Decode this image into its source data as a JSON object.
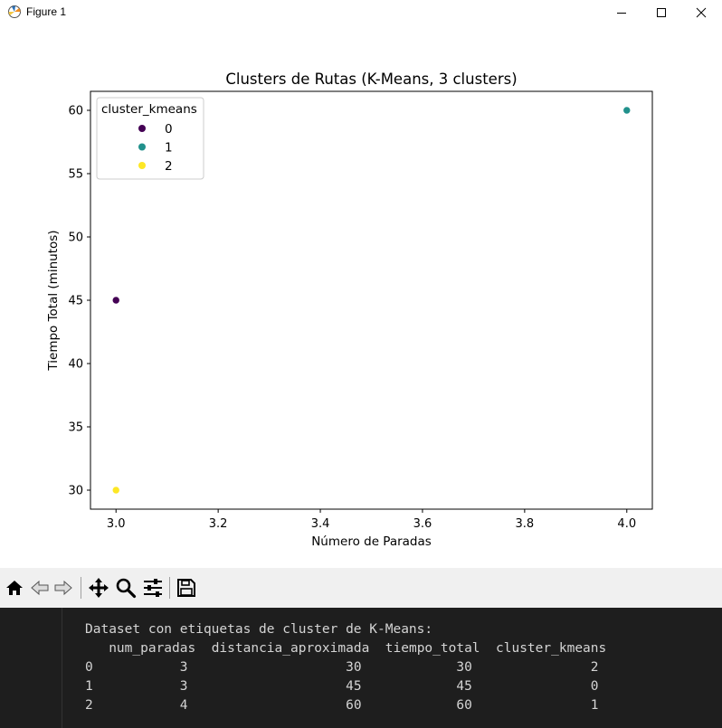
{
  "window": {
    "title": "Figure 1",
    "controls": [
      "minimize-icon",
      "maximize-icon",
      "close-icon"
    ]
  },
  "chart_data": {
    "type": "scatter",
    "title": "Clusters de Rutas (K-Means, 3 clusters)",
    "xlabel": "Número de Paradas",
    "ylabel": "Tiempo Total (minutos)",
    "xlim": [
      2.95,
      4.05
    ],
    "ylim": [
      28.5,
      61.5
    ],
    "xticks": [
      "3.0",
      "3.2",
      "3.4",
      "3.6",
      "3.8",
      "4.0"
    ],
    "yticks": [
      "30",
      "35",
      "40",
      "45",
      "50",
      "55",
      "60"
    ],
    "grid": false,
    "legend": {
      "title": "cluster_kmeans",
      "placement": "top-left",
      "entries": [
        "0",
        "1",
        "2"
      ]
    },
    "series": [
      {
        "name": "0",
        "color": "#440154",
        "points": [
          [
            3,
            45
          ]
        ]
      },
      {
        "name": "1",
        "color": "#21918c",
        "points": [
          [
            4,
            60
          ]
        ]
      },
      {
        "name": "2",
        "color": "#fde725",
        "points": [
          [
            3,
            30
          ]
        ]
      }
    ]
  },
  "toolbar": {
    "buttons": [
      "home-icon",
      "back-icon",
      "forward-icon",
      "pan-icon",
      "zoom-icon",
      "configure-subplots-icon",
      "save-icon"
    ]
  },
  "terminal": {
    "heading": "Dataset con etiquetas de cluster de K-Means:",
    "columns": [
      "num_paradas",
      "distancia_aproximada",
      "tiempo_total",
      "cluster_kmeans"
    ],
    "rows": [
      {
        "index": "0",
        "values": [
          "3",
          "30",
          "30",
          "2"
        ]
      },
      {
        "index": "1",
        "values": [
          "3",
          "45",
          "45",
          "0"
        ]
      },
      {
        "index": "2",
        "values": [
          "4",
          "60",
          "60",
          "1"
        ]
      }
    ]
  }
}
